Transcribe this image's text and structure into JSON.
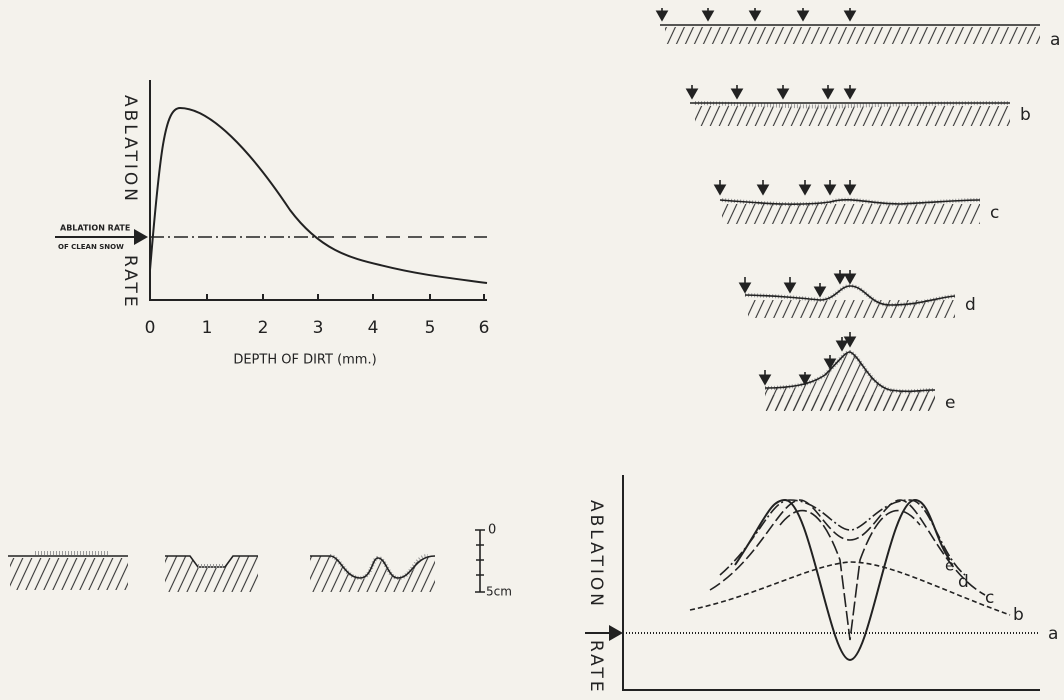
{
  "graph": {
    "y_label_top": "ABLATION",
    "y_label_bottom": "RATE",
    "reference_label_1": "ABLATION RATE",
    "reference_label_2": "OF CLEAN SNOW",
    "x_tick_labels": [
      "0",
      "1",
      "2",
      "3",
      "4",
      "5",
      "6"
    ],
    "x_label": "DEPTH OF DIRT (mm.)"
  },
  "profiles": {
    "labels": [
      "a",
      "b",
      "c",
      "d",
      "e"
    ]
  },
  "scale": {
    "top": "0",
    "bottom": "5cm"
  },
  "lower_graph": {
    "y_label_top": "ABLATION",
    "y_label_bottom": "RATE",
    "curve_labels": [
      "e",
      "d",
      "c",
      "b",
      "a"
    ]
  }
}
